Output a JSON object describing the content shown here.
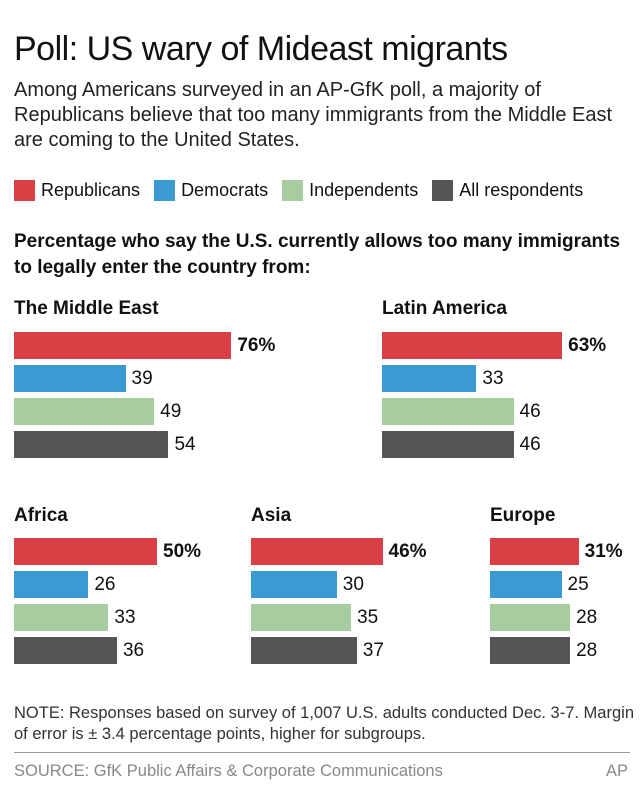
{
  "title": "Poll: US wary of Mideast migrants",
  "subtitle": "Among Americans surveyed in an AP-GfK poll, a majority of Republicans believe that too many immigrants from the Middle East are coming to the United States.",
  "question": "Percentage who say the U.S. currently allows too many immigrants to legally enter the country from:",
  "note": "NOTE: Responses based on survey of 1,007 U.S. adults conducted Dec. 3-7. Margin of error is ± 3.4 percentage points, higher for subgroups.",
  "source": "SOURCE: GfK Public Affairs & Corporate Communications",
  "credit": "AP",
  "chart_data": {
    "type": "bar",
    "orientation": "horizontal",
    "series": [
      {
        "name": "Republicans",
        "color": "#d94046"
      },
      {
        "name": "Democrats",
        "color": "#3a9ad1"
      },
      {
        "name": "Independents",
        "color": "#a6cc9f"
      },
      {
        "name": "All respondents",
        "color": "#555558"
      }
    ],
    "panels": [
      {
        "title": "The Middle East",
        "values": [
          76,
          39,
          49,
          54
        ]
      },
      {
        "title": "Latin America",
        "values": [
          63,
          33,
          46,
          46
        ]
      },
      {
        "title": "Africa",
        "values": [
          50,
          26,
          33,
          36
        ]
      },
      {
        "title": "Asia",
        "values": [
          46,
          30,
          35,
          37
        ]
      },
      {
        "title": "Europe",
        "values": [
          31,
          25,
          28,
          28
        ]
      }
    ],
    "first_value_suffix": "%",
    "legend_position": "top",
    "grid": false
  }
}
